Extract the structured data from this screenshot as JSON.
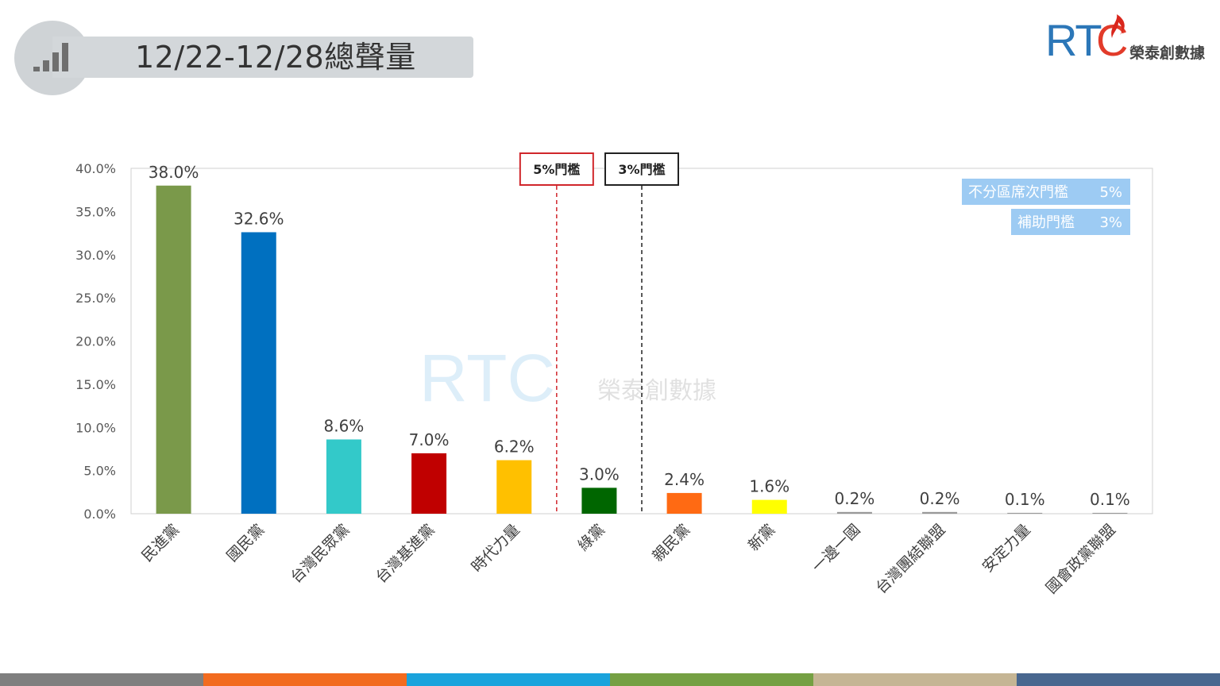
{
  "header": {
    "title": "12/22-12/28總聲量",
    "icon": "bar-signal-icon"
  },
  "logo": {
    "mark": "RTC",
    "mark_rt": "RT",
    "mark_c": "C",
    "name": "榮泰創數據"
  },
  "watermark": {
    "mark": "RTC",
    "name": "榮泰創數據"
  },
  "chart_data": {
    "type": "bar",
    "title": "",
    "xlabel": "",
    "ylabel": "",
    "ylim": [
      0,
      40
    ],
    "yticks": [
      "0.0%",
      "5.0%",
      "10.0%",
      "15.0%",
      "20.0%",
      "25.0%",
      "30.0%",
      "35.0%",
      "40.0%"
    ],
    "categories": [
      "民進黨",
      "國民黨",
      "台灣民眾黨",
      "台灣基進黨",
      "時代力量",
      "綠黨",
      "親民黨",
      "新黨",
      "一邊一國",
      "台灣團結聯盟",
      "安定力量",
      "國會政黨聯盟"
    ],
    "values": [
      38.0,
      32.6,
      8.6,
      7.0,
      6.2,
      3.0,
      2.4,
      1.6,
      0.2,
      0.2,
      0.1,
      0.1
    ],
    "value_labels": [
      "38.0%",
      "32.6%",
      "8.6%",
      "7.0%",
      "6.2%",
      "3.0%",
      "2.4%",
      "1.6%",
      "0.2%",
      "0.2%",
      "0.1%",
      "0.1%"
    ],
    "colors": [
      "#7a994a",
      "#0070c0",
      "#33c9c9",
      "#c00000",
      "#ffc000",
      "#006600",
      "#ff6a13",
      "#ffff00",
      "#999999",
      "#999999",
      "#999999",
      "#999999"
    ],
    "thresholds": [
      {
        "label": "5%門檻",
        "after_category_index": 4,
        "color": "#d0262b"
      },
      {
        "label": "3%門檻",
        "after_category_index": 5,
        "color": "#222222"
      }
    ],
    "legend_boxes": [
      {
        "label": "不分區席次門檻",
        "value": "5%"
      },
      {
        "label": "補助門檻",
        "value": "3%"
      }
    ],
    "legend_position": "top-right",
    "grid": false
  },
  "footer_colors": [
    "#7f7f7f",
    "#f26b1f",
    "#1aa3dc",
    "#75a043",
    "#c5b594",
    "#49678f"
  ]
}
